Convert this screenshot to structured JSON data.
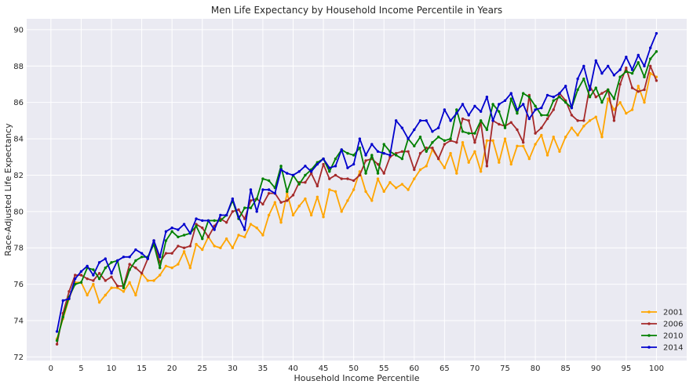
{
  "chart_data": {
    "type": "line",
    "title": "Men Life Expectancy by Household Income Percentile in Years",
    "xlabel": "Household Income Percentile",
    "ylabel": "Race-Adjusted Life Expectancy",
    "xlim": [
      -4,
      105
    ],
    "ylim": [
      71.8,
      90.6
    ],
    "xticks": [
      0,
      5,
      10,
      15,
      20,
      25,
      30,
      35,
      40,
      45,
      50,
      55,
      60,
      65,
      70,
      75,
      80,
      85,
      90,
      95,
      100
    ],
    "xtick_labels": [
      "0",
      "5",
      "10",
      "15",
      "20",
      "25",
      "30",
      "35",
      "40",
      "45",
      "50",
      "55",
      "60",
      "65",
      "70",
      "75",
      "80",
      "85",
      "90",
      "95",
      "100"
    ],
    "yticks": [
      72,
      74,
      76,
      78,
      80,
      82,
      84,
      86,
      88,
      90
    ],
    "ytick_labels": [
      "72",
      "74",
      "76",
      "78",
      "80",
      "82",
      "84",
      "86",
      "88",
      "90"
    ],
    "grid": true,
    "legend_position": "bottom-right",
    "x": [
      1,
      2,
      3,
      4,
      5,
      6,
      7,
      8,
      9,
      10,
      11,
      12,
      13,
      14,
      15,
      16,
      17,
      18,
      19,
      20,
      21,
      22,
      23,
      24,
      25,
      26,
      27,
      28,
      29,
      30,
      31,
      32,
      33,
      34,
      35,
      36,
      37,
      38,
      39,
      40,
      41,
      42,
      43,
      44,
      45,
      46,
      47,
      48,
      49,
      50,
      51,
      52,
      53,
      54,
      55,
      56,
      57,
      58,
      59,
      60,
      61,
      62,
      63,
      64,
      65,
      66,
      67,
      68,
      69,
      70,
      71,
      72,
      73,
      74,
      75,
      76,
      77,
      78,
      79,
      80,
      81,
      82,
      83,
      84,
      85,
      86,
      87,
      88,
      89,
      90,
      91,
      92,
      93,
      94,
      95,
      96,
      97,
      98,
      99,
      100
    ],
    "series": [
      {
        "name": "2001",
        "color": "#FFA500",
        "values": [
          73.0,
          74.1,
          75.2,
          76.1,
          76.1,
          75.4,
          76.0,
          75.0,
          75.4,
          75.8,
          75.8,
          75.6,
          76.1,
          75.4,
          76.6,
          76.2,
          76.2,
          76.5,
          77.0,
          76.9,
          77.1,
          77.8,
          76.9,
          78.2,
          77.9,
          78.6,
          78.1,
          78.0,
          78.5,
          78.0,
          78.7,
          78.6,
          79.3,
          79.1,
          78.7,
          79.8,
          80.5,
          79.4,
          81.0,
          79.8,
          80.3,
          80.7,
          79.8,
          80.8,
          79.7,
          81.2,
          81.1,
          80.0,
          80.6,
          81.2,
          82.2,
          81.1,
          80.6,
          81.8,
          81.1,
          81.6,
          81.3,
          81.5,
          81.2,
          81.8,
          82.3,
          82.5,
          83.4,
          82.9,
          82.4,
          83.2,
          82.1,
          83.8,
          82.7,
          83.3,
          82.2,
          83.9,
          83.9,
          82.7,
          84.0,
          82.6,
          83.6,
          83.6,
          82.9,
          83.7,
          84.2,
          83.1,
          84.1,
          83.3,
          84.1,
          84.6,
          84.2,
          84.7,
          85.0,
          85.2,
          84.1,
          86.2,
          85.6,
          86.0,
          85.4,
          85.6,
          86.9,
          86.0,
          87.6,
          87.4
        ]
      },
      {
        "name": "2006",
        "color": "#A52A2A",
        "values": [
          72.7,
          74.4,
          75.6,
          76.5,
          76.5,
          76.3,
          76.2,
          76.6,
          76.2,
          76.4,
          75.9,
          75.9,
          77.1,
          76.9,
          76.6,
          77.4,
          78.4,
          77.2,
          77.7,
          77.7,
          78.1,
          78.0,
          78.1,
          79.3,
          79.1,
          78.6,
          79.2,
          79.6,
          79.4,
          80.0,
          80.1,
          79.6,
          80.6,
          80.7,
          80.4,
          81.0,
          81.0,
          80.5,
          80.6,
          80.9,
          81.6,
          81.6,
          82.1,
          81.4,
          82.6,
          81.8,
          82.0,
          81.8,
          81.8,
          81.7,
          82.0,
          82.8,
          82.9,
          82.6,
          82.1,
          83.0,
          83.2,
          83.3,
          83.3,
          82.3,
          83.2,
          83.5,
          83.5,
          82.9,
          83.7,
          83.9,
          83.8,
          85.1,
          85.0,
          83.8,
          84.9,
          82.5,
          85.0,
          84.8,
          84.7,
          84.9,
          84.5,
          83.8,
          86.4,
          84.3,
          84.6,
          85.1,
          85.6,
          86.5,
          86.1,
          85.3,
          85.0,
          85.0,
          86.9,
          86.3,
          86.5,
          86.7,
          85.0,
          87.0,
          87.9,
          86.8,
          86.6,
          86.7,
          88.0,
          87.2
        ]
      },
      {
        "name": "2010",
        "color": "#008000",
        "values": [
          72.9,
          74.2,
          75.3,
          76.0,
          76.1,
          76.9,
          76.8,
          76.3,
          76.9,
          77.2,
          77.3,
          75.8,
          76.8,
          77.3,
          77.5,
          77.5,
          78.2,
          76.9,
          78.4,
          78.9,
          78.6,
          78.7,
          78.8,
          79.2,
          78.5,
          79.5,
          79.5,
          79.5,
          79.8,
          80.6,
          79.6,
          80.2,
          80.2,
          80.7,
          81.8,
          81.7,
          81.3,
          82.5,
          81.1,
          82.0,
          81.5,
          82.0,
          82.3,
          82.7,
          82.9,
          82.2,
          82.9,
          83.4,
          83.2,
          83.1,
          83.5,
          82.1,
          83.1,
          82.1,
          83.7,
          83.3,
          83.1,
          82.9,
          84.0,
          83.6,
          84.1,
          83.3,
          83.8,
          84.1,
          83.9,
          84.0,
          85.6,
          84.4,
          84.3,
          84.3,
          85.0,
          84.5,
          85.9,
          85.5,
          84.6,
          86.2,
          85.4,
          86.5,
          86.3,
          85.8,
          85.3,
          85.3,
          86.1,
          86.3,
          86.0,
          85.7,
          86.7,
          87.3,
          86.3,
          86.8,
          86.0,
          86.7,
          86.2,
          87.4,
          87.7,
          87.6,
          88.2,
          87.4,
          88.4,
          88.8
        ]
      },
      {
        "name": "2014",
        "color": "#0000CD",
        "values": [
          73.4,
          75.1,
          75.2,
          76.3,
          76.7,
          77.0,
          76.5,
          77.2,
          77.4,
          76.6,
          77.3,
          77.5,
          77.5,
          77.9,
          77.7,
          77.4,
          78.4,
          77.5,
          78.9,
          79.1,
          79.0,
          79.3,
          78.8,
          79.6,
          79.5,
          79.5,
          79.0,
          79.8,
          79.8,
          80.7,
          79.7,
          79.0,
          81.2,
          80.0,
          81.2,
          81.2,
          81.0,
          82.3,
          82.1,
          82.0,
          82.2,
          82.5,
          82.2,
          82.6,
          82.9,
          82.4,
          82.5,
          83.4,
          82.4,
          82.6,
          84.0,
          83.1,
          83.7,
          83.3,
          83.2,
          83.1,
          85.0,
          84.6,
          84.0,
          84.5,
          85.0,
          85.0,
          84.4,
          84.6,
          85.6,
          85.0,
          85.4,
          85.9,
          85.3,
          85.8,
          85.5,
          86.3,
          85.0,
          85.9,
          86.1,
          86.5,
          85.6,
          85.9,
          85.1,
          85.6,
          85.7,
          86.4,
          86.3,
          86.5,
          86.9,
          85.7,
          87.3,
          88.0,
          86.7,
          88.3,
          87.6,
          88.0,
          87.5,
          87.8,
          88.5,
          87.8,
          88.6,
          88.0,
          89.0,
          89.8
        ]
      }
    ]
  }
}
